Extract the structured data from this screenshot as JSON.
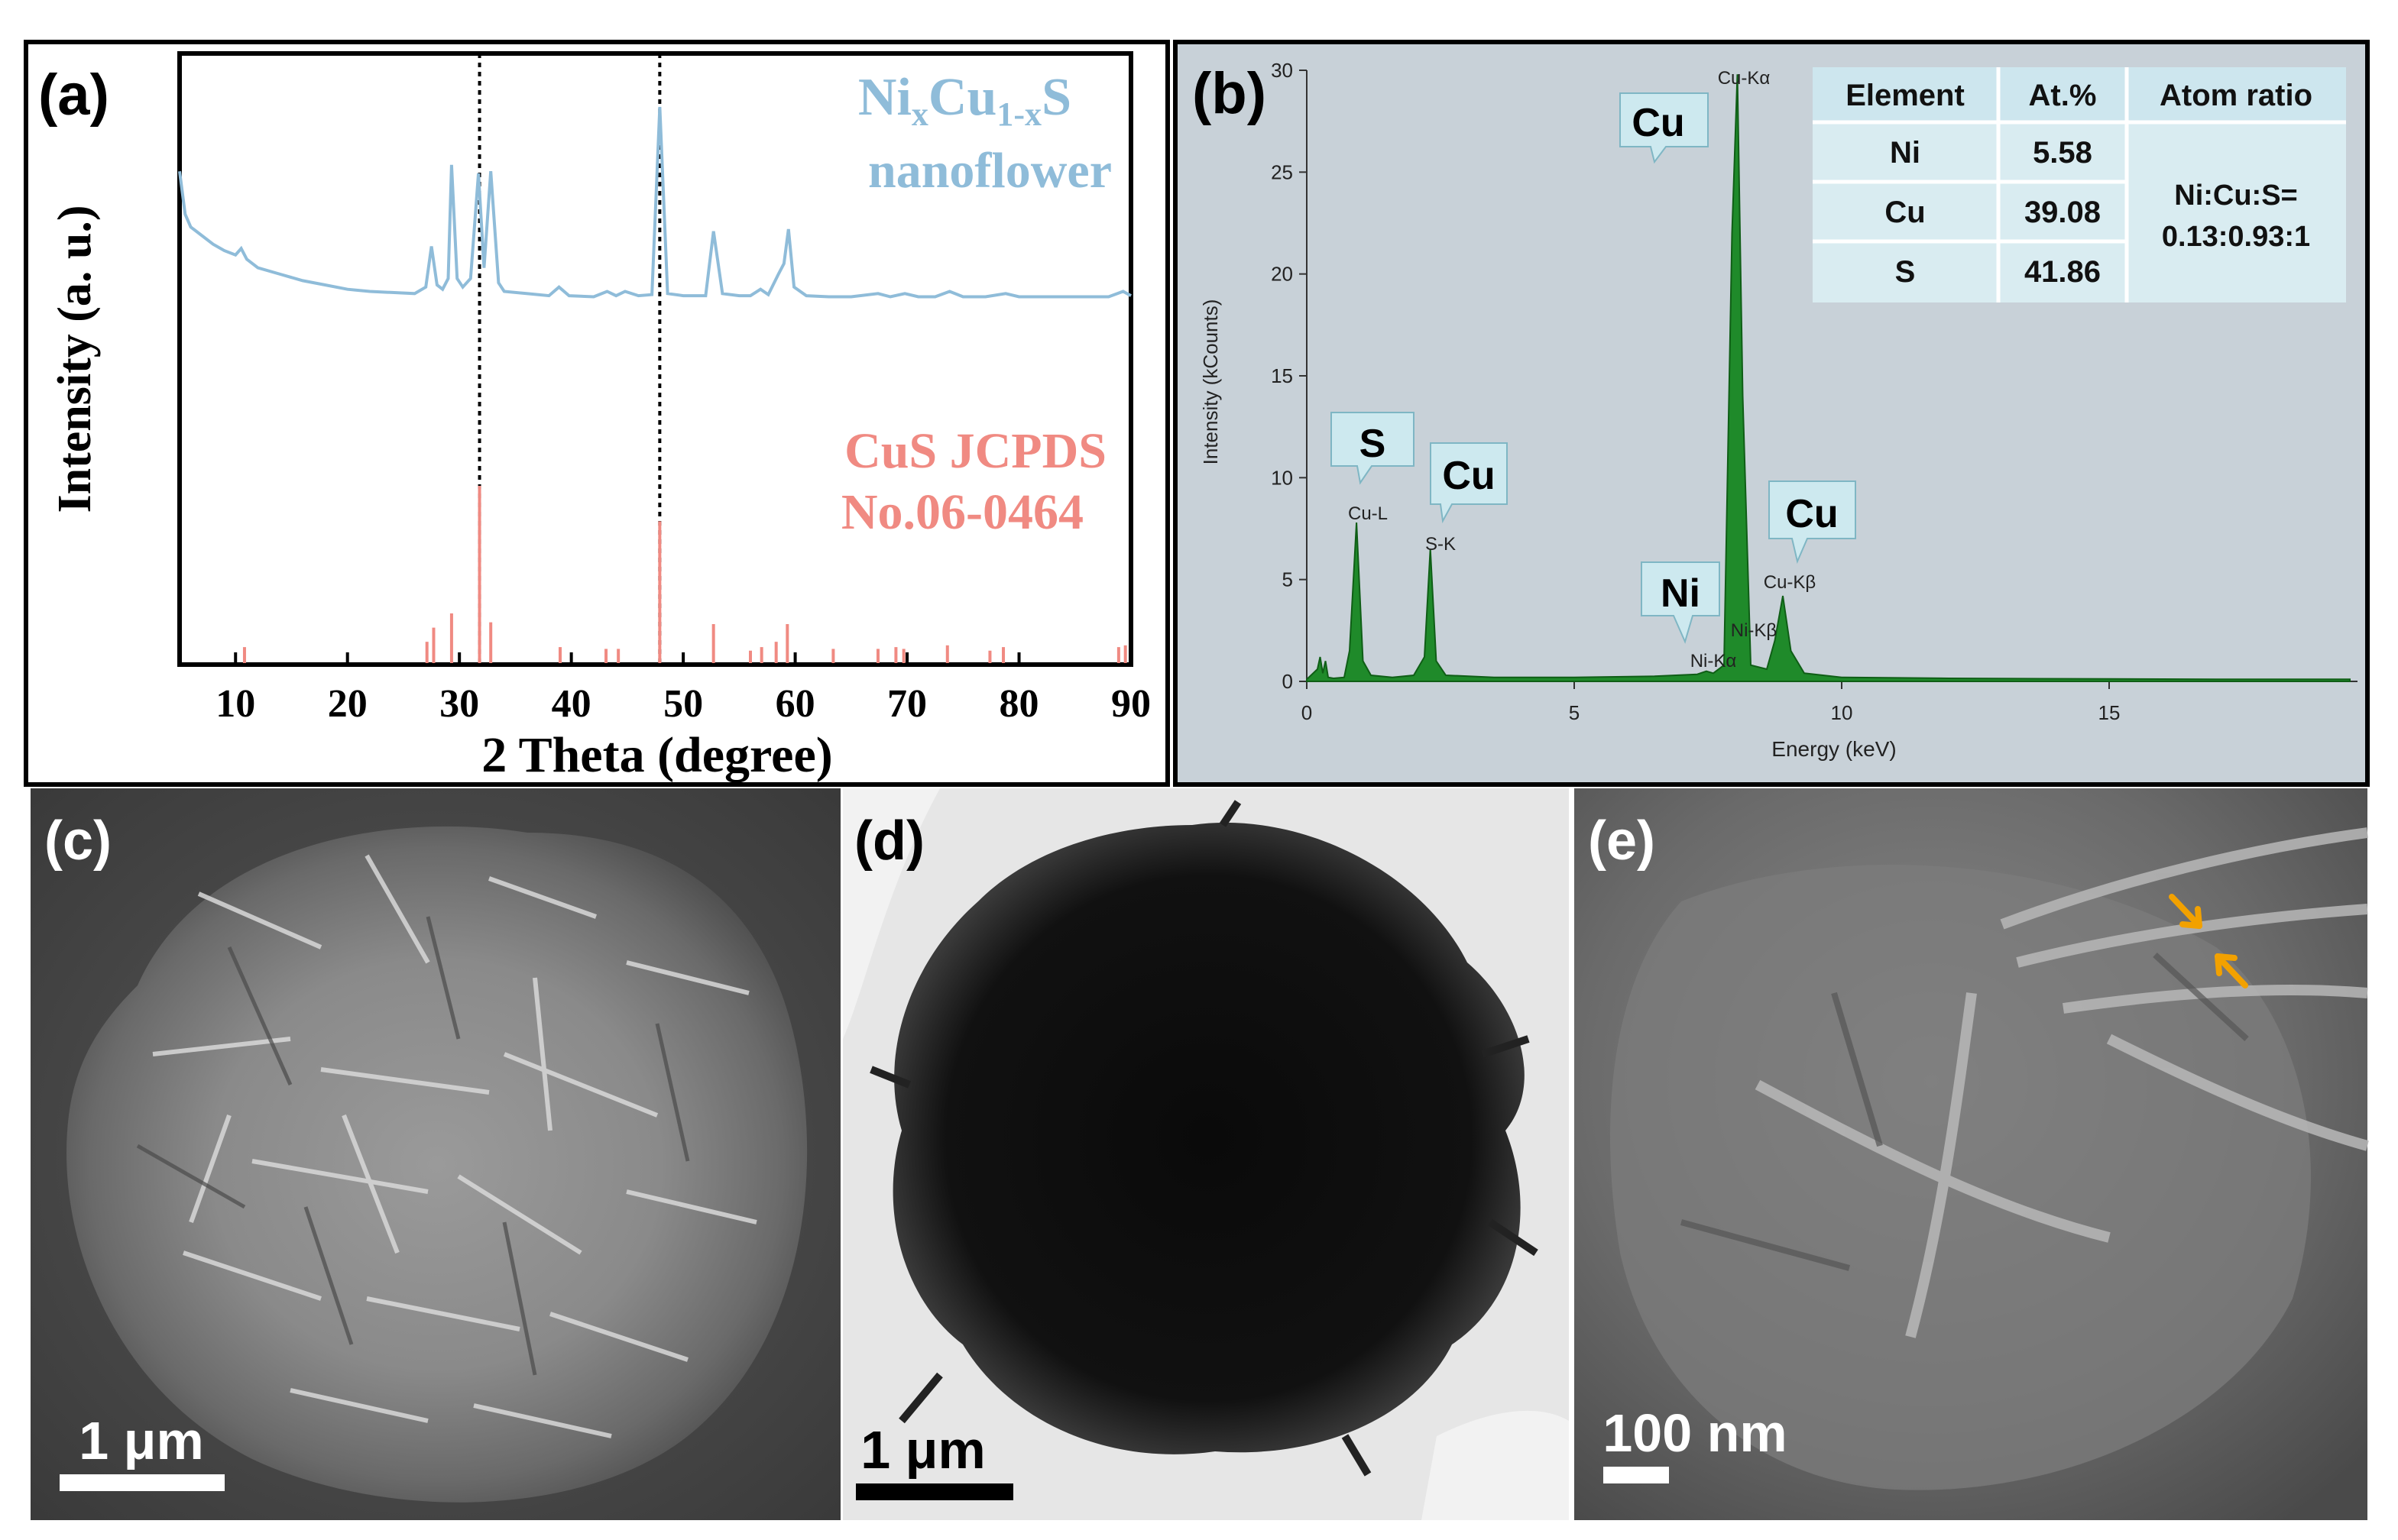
{
  "panel_labels": {
    "a": "(a)",
    "b": "(b)",
    "c": "(c)",
    "d": "(d)",
    "e": "(e)"
  },
  "colors": {
    "xrd_blue": "#8fbcd9",
    "ref_red": "#f08a82",
    "eds_green": "#1f8a2a",
    "eds_bg": "#c8d1d8",
    "callout": "#cde9ef",
    "arrow": "#f2a100"
  },
  "chart_data": [
    {
      "type": "line",
      "title": "",
      "xlabel": "2 Theta (degree)",
      "ylabel": "Intensity (a. u.)",
      "xlim": [
        5,
        90
      ],
      "xticks": [
        10,
        20,
        30,
        40,
        50,
        60,
        70,
        80,
        90
      ],
      "grid": false,
      "series": [
        {
          "name": "NixCu1-xS nanoflower",
          "name_parts": {
            "p1": "Ni",
            "s1": "x",
            "p2": "Cu",
            "s2": "1-x",
            "p3": "S",
            "line2": "nanoflower"
          },
          "x": [
            5,
            5.5,
            6,
            7,
            8,
            9,
            10,
            10.5,
            11,
            12,
            14,
            16,
            18,
            20,
            22,
            24,
            26,
            27,
            27.5,
            28,
            28.5,
            29,
            29.3,
            29.8,
            30.3,
            31,
            31.7,
            32.2,
            32.8,
            33.5,
            34,
            36,
            38,
            38.9,
            39.8,
            42,
            43.2,
            44,
            44.8,
            46,
            47.2,
            47.9,
            48.6,
            50,
            52,
            52.7,
            53.5,
            55,
            56,
            56.9,
            57.6,
            58.5,
            59,
            59.4,
            59.9,
            61,
            63,
            65,
            67.4,
            68.5,
            69.8,
            71,
            72.5,
            73.8,
            75,
            77,
            78.8,
            80,
            82,
            84,
            86,
            88,
            89.3,
            90
          ],
          "y": [
            100,
            80,
            74,
            70,
            66,
            63,
            61,
            64,
            59,
            55,
            52,
            49,
            47,
            45,
            44,
            43.5,
            43,
            46,
            65,
            47,
            45,
            50,
            103,
            50,
            46,
            50,
            99,
            55,
            100,
            48,
            44,
            43,
            42,
            46,
            42,
            41.5,
            44,
            42,
            44,
            42,
            42.5,
            130,
            43,
            42,
            42,
            72,
            43,
            42,
            42,
            45,
            42.5,
            52,
            57,
            73,
            46,
            42,
            41.5,
            41.5,
            43,
            41.5,
            43,
            41.5,
            41.5,
            44,
            41.5,
            41.5,
            43,
            41.5,
            41.5,
            41.5,
            41.5,
            41.5,
            44,
            42
          ]
        },
        {
          "name": "CuS JCPDS No.06-0464",
          "name_parts": {
            "line1": "CuS JCPDS",
            "line2": "No.06-0464"
          },
          "type": "stick",
          "x": [
            10.8,
            27.1,
            27.7,
            29.3,
            31.8,
            32.8,
            39.0,
            43.1,
            44.2,
            47.9,
            52.7,
            56.0,
            57.0,
            58.3,
            59.3,
            63.4,
            67.4,
            69.0,
            69.7,
            73.6,
            77.4,
            78.6,
            88.9,
            89.5
          ],
          "y": [
            9,
            12,
            20,
            28,
            100,
            23,
            9,
            8,
            8,
            80,
            22,
            7,
            9,
            12,
            22,
            8,
            8,
            9,
            8,
            10,
            7,
            9,
            9,
            10
          ]
        }
      ],
      "reference_lines_x": [
        31.8,
        47.9
      ]
    },
    {
      "type": "area",
      "title": "",
      "xlabel": "Energy (keV)",
      "ylabel": "Intensity (kCounts)",
      "xlim": [
        0,
        19.5
      ],
      "ylim": [
        0,
        30
      ],
      "xticks": [
        0,
        5,
        10,
        15
      ],
      "yticks": [
        0,
        5,
        10,
        15,
        20,
        25,
        30
      ],
      "grid": false,
      "series": [
        {
          "name": "",
          "x": [
            0,
            0.2,
            0.25,
            0.3,
            0.35,
            0.4,
            0.5,
            0.7,
            0.8,
            0.93,
            1.05,
            1.2,
            1.6,
            2.0,
            2.2,
            2.31,
            2.42,
            2.6,
            3.5,
            5,
            6.5,
            7.3,
            7.47,
            7.6,
            7.8,
            7.95,
            8.05,
            8.15,
            8.3,
            8.6,
            8.75,
            8.9,
            9.05,
            9.3,
            10,
            12,
            15,
            17,
            19.5
          ],
          "y": [
            0.1,
            0.6,
            1.2,
            0.4,
            1.0,
            0.2,
            0.15,
            0.2,
            1.5,
            7.8,
            1.0,
            0.3,
            0.2,
            0.3,
            1.2,
            6.5,
            1.0,
            0.3,
            0.2,
            0.2,
            0.25,
            0.35,
            0.5,
            0.4,
            0.8,
            22,
            29.8,
            14,
            0.8,
            0.6,
            2.0,
            4.2,
            1.5,
            0.4,
            0.2,
            0.15,
            0.12,
            0.1,
            0.1
          ]
        }
      ],
      "peak_labels": [
        "Cu-Kα",
        "Cu-L",
        "S-K",
        "Cu-Kβ",
        "Ni-Kβ",
        "Ni-Kα"
      ],
      "callouts": [
        "Cu",
        "S",
        "Cu",
        "Ni",
        "Cu"
      ],
      "table": {
        "headers": [
          "Element",
          "At.%",
          "Atom ratio"
        ],
        "rows": [
          [
            "Ni",
            "5.58"
          ],
          [
            "Cu",
            "39.08"
          ],
          [
            "S",
            "41.86"
          ]
        ],
        "ratio_lines": [
          "Ni:Cu:S=",
          "0.13:0.93:1"
        ]
      }
    }
  ],
  "micrographs": {
    "c": {
      "scale_bar": "1 μm"
    },
    "d": {
      "scale_bar": "1 μm"
    },
    "e": {
      "scale_bar": "100 nm"
    }
  }
}
